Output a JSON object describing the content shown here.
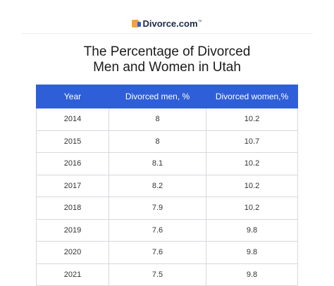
{
  "logo": {
    "name": "Divorce.com",
    "mark": "™"
  },
  "title": [
    "The Percentage of Divorced",
    "Men and Women in Utah"
  ],
  "table": {
    "header": [
      "Year",
      "Divorced men, %",
      "Divorced women,%"
    ],
    "rows": [
      [
        2014,
        8,
        10.2
      ],
      [
        2015,
        8,
        10.7
      ],
      [
        2016,
        8.1,
        10.2
      ],
      [
        2017,
        8.2,
        10.2
      ],
      [
        2018,
        7.9,
        10.2
      ],
      [
        2019,
        7.6,
        9.8
      ],
      [
        2020,
        7.6,
        9.8
      ],
      [
        2021,
        7.5,
        9.8
      ]
    ]
  }
}
